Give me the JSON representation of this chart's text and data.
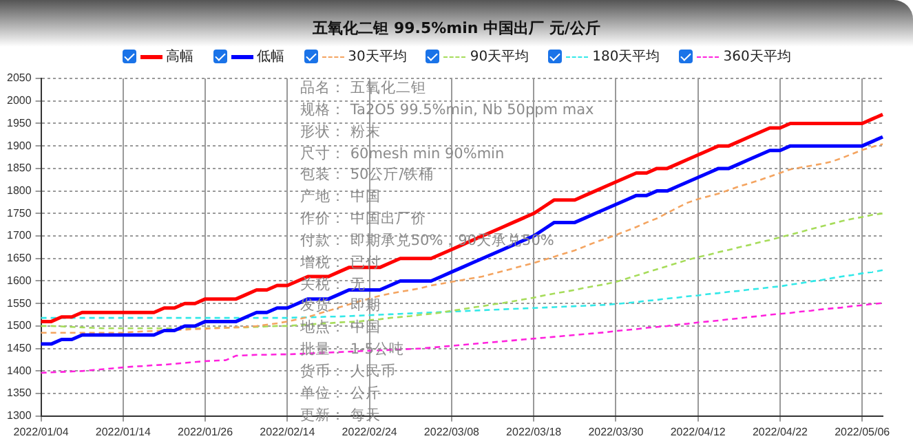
{
  "chart_data": {
    "type": "line",
    "title": "五氧化二钽 99.5%min 中国出厂 元/公斤",
    "categories": [
      "2022/01/04",
      null,
      null,
      null,
      null,
      null,
      null,
      null,
      "2022/01/14",
      null,
      null,
      null,
      null,
      null,
      null,
      null,
      "2022/01/26",
      null,
      null,
      null,
      null,
      null,
      null,
      null,
      "2022/02/14",
      null,
      null,
      null,
      null,
      null,
      null,
      null,
      "2022/02/24",
      null,
      null,
      null,
      null,
      null,
      null,
      null,
      "2022/03/08",
      null,
      null,
      null,
      null,
      null,
      null,
      null,
      "2022/03/18",
      null,
      null,
      null,
      null,
      null,
      null,
      null,
      "2022/03/30",
      null,
      null,
      null,
      null,
      null,
      null,
      null,
      "2022/04/12",
      null,
      null,
      null,
      null,
      null,
      null,
      null,
      "2022/04/22",
      null,
      null,
      null,
      null,
      null,
      null,
      null,
      "2022/05/06",
      null,
      null
    ],
    "series": [
      {
        "name": "高幅",
        "color": "#ff0000",
        "line_style": "solid",
        "values": [
          1510,
          1510,
          1520,
          1520,
          1530,
          1530,
          1530,
          1530,
          1530,
          1530,
          1530,
          1530,
          1540,
          1540,
          1550,
          1550,
          1560,
          1560,
          1560,
          1560,
          1570,
          1580,
          1580,
          1590,
          1590,
          1600,
          1610,
          1610,
          1610,
          1620,
          1630,
          1630,
          1630,
          1630,
          1640,
          1650,
          1650,
          1650,
          1650,
          1660,
          1670,
          1680,
          1690,
          1700,
          1710,
          1720,
          1730,
          1740,
          1750,
          1765,
          1780,
          1780,
          1780,
          1790,
          1800,
          1810,
          1820,
          1830,
          1840,
          1840,
          1850,
          1850,
          1860,
          1870,
          1880,
          1890,
          1900,
          1900,
          1910,
          1920,
          1930,
          1940,
          1940,
          1950,
          1950,
          1950,
          1950,
          1950,
          1950,
          1950,
          1950,
          1960,
          1970
        ]
      },
      {
        "name": "低幅",
        "color": "#0000ff",
        "line_style": "solid",
        "values": [
          1460,
          1460,
          1470,
          1470,
          1480,
          1480,
          1480,
          1480,
          1480,
          1480,
          1480,
          1480,
          1490,
          1490,
          1500,
          1500,
          1510,
          1510,
          1510,
          1510,
          1520,
          1530,
          1530,
          1540,
          1540,
          1550,
          1560,
          1560,
          1560,
          1570,
          1580,
          1580,
          1580,
          1580,
          1590,
          1600,
          1600,
          1600,
          1600,
          1610,
          1620,
          1630,
          1640,
          1650,
          1660,
          1670,
          1680,
          1690,
          1700,
          1715,
          1730,
          1730,
          1730,
          1740,
          1750,
          1760,
          1770,
          1780,
          1790,
          1790,
          1800,
          1800,
          1810,
          1820,
          1830,
          1840,
          1850,
          1850,
          1860,
          1870,
          1880,
          1890,
          1890,
          1900,
          1900,
          1900,
          1900,
          1900,
          1900,
          1900,
          1900,
          1910,
          1920
        ]
      },
      {
        "name": "30天平均",
        "color": "#f4a460",
        "line_style": "dashed",
        "values": [
          1485,
          1485,
          1485,
          1485,
          1485,
          1485,
          1485,
          1485,
          1485,
          1487,
          1488,
          1489,
          1490,
          1491,
          1492,
          1493,
          1494,
          1495,
          1496,
          1497,
          1498,
          1500,
          1503,
          1506,
          1510,
          1515,
          1520,
          1527,
          1534,
          1541,
          1548,
          1555,
          1561,
          1567,
          1572,
          1576,
          1580,
          1584,
          1590,
          1594,
          1598,
          1602,
          1606,
          1610,
          1616,
          1622,
          1628,
          1634,
          1640,
          1647,
          1654,
          1661,
          1668,
          1677,
          1686,
          1694,
          1702,
          1711,
          1720,
          1730,
          1739,
          1751,
          1763,
          1774,
          1782,
          1788,
          1794,
          1802,
          1810,
          1817,
          1824,
          1832,
          1840,
          1848,
          1852,
          1856,
          1860,
          1865,
          1873,
          1882,
          1891,
          1898,
          1904
        ]
      },
      {
        "name": "90天平均",
        "color": "#a6dc5a",
        "line_style": "dashed",
        "values": [
          1500,
          1500,
          1499,
          1498,
          1497,
          1496,
          1495,
          1495,
          1495,
          1495,
          1495,
          1495,
          1495,
          1495,
          1495,
          1495,
          1495,
          1496,
          1496,
          1497,
          1497,
          1498,
          1499,
          1500,
          1500,
          1502,
          1503,
          1505,
          1506,
          1508,
          1509,
          1510,
          1513,
          1515,
          1518,
          1520,
          1522,
          1525,
          1527,
          1530,
          1534,
          1537,
          1541,
          1544,
          1548,
          1551,
          1555,
          1559,
          1563,
          1568,
          1572,
          1576,
          1580,
          1585,
          1589,
          1593,
          1598,
          1605,
          1612,
          1619,
          1626,
          1633,
          1640,
          1647,
          1653,
          1658,
          1664,
          1669,
          1675,
          1680,
          1686,
          1691,
          1697,
          1703,
          1709,
          1715,
          1721,
          1727,
          1733,
          1738,
          1742,
          1747,
          1750
        ]
      },
      {
        "name": "180天平均",
        "color": "#33e8e8",
        "line_style": "dashed",
        "values": [
          1518,
          1518,
          1518,
          1518,
          1518,
          1518,
          1518,
          1518,
          1518,
          1518,
          1518,
          1518,
          1518,
          1518,
          1518,
          1518,
          1518,
          1518,
          1518,
          1518,
          1518,
          1518,
          1518,
          1518,
          1518,
          1519,
          1519,
          1520,
          1521,
          1521,
          1522,
          1523,
          1524,
          1525,
          1526,
          1527,
          1528,
          1529,
          1530,
          1531,
          1532,
          1533,
          1534,
          1535,
          1536,
          1537,
          1538,
          1539,
          1540,
          1541,
          1542,
          1543,
          1544,
          1545,
          1546,
          1547,
          1549,
          1551,
          1553,
          1556,
          1558,
          1561,
          1563,
          1566,
          1568,
          1571,
          1573,
          1576,
          1578,
          1581,
          1583,
          1586,
          1588,
          1592,
          1595,
          1599,
          1602,
          1606,
          1610,
          1613,
          1617,
          1620,
          1624
        ]
      },
      {
        "name": "360天平均",
        "color": "#ff22dd",
        "line_style": "dashed",
        "values": [
          1396,
          1397,
          1398,
          1399,
          1400,
          1402,
          1404,
          1406,
          1408,
          1410,
          1411,
          1413,
          1414,
          1416,
          1418,
          1420,
          1422,
          1423,
          1424,
          1434,
          1435,
          1436,
          1436,
          1437,
          1437,
          1438,
          1439,
          1440,
          1441,
          1442,
          1443,
          1444,
          1445,
          1446,
          1447,
          1448,
          1449,
          1450,
          1452,
          1454,
          1456,
          1458,
          1460,
          1462,
          1464,
          1466,
          1468,
          1470,
          1472,
          1474,
          1476,
          1478,
          1480,
          1482,
          1484,
          1486,
          1489,
          1491,
          1493,
          1496,
          1498,
          1500,
          1503,
          1505,
          1508,
          1510,
          1512,
          1515,
          1517,
          1520,
          1522,
          1525,
          1527,
          1529,
          1532,
          1534,
          1537,
          1539,
          1541,
          1544,
          1546,
          1549,
          1551
        ]
      }
    ],
    "ylim": [
      1300,
      2050
    ],
    "yticks": [
      1300,
      1350,
      1400,
      1450,
      1500,
      1550,
      1600,
      1650,
      1700,
      1750,
      1800,
      1850,
      1900,
      1950,
      2000,
      2050
    ],
    "grid": true,
    "legend": "top",
    "marker": "none",
    "annotations": [
      "品名：  五氧化二钽",
      "规格：  Ta2O5 99.5%min, Nb 50ppm max",
      "形状：  粉末",
      "尺寸：  60mesh min 90%min",
      "包装：  50公斤/铁桶",
      "产地：  中国",
      "作价：  中国出厂价",
      "付款：  即期承兑50%，90天承兑50%",
      "增税：  已付",
      "关税：  无",
      "发货：  即期",
      "地点：  中国",
      "批量：  1-5公吨",
      "货币：  人民币",
      "单位：  公斤",
      "更新：  每天"
    ]
  }
}
